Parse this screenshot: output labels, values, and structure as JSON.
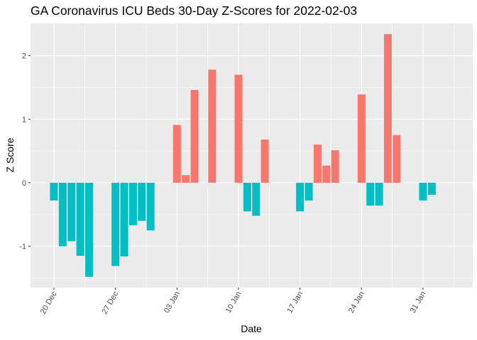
{
  "chart_data": {
    "type": "bar",
    "title": "GA Coronavirus ICU Beds 30-Day Z-Scores for 2022-02-03",
    "xlabel": "Date",
    "ylabel": "Z Score",
    "x_tick_labels": [
      "20 Dec",
      "27 Dec",
      "03 Jan",
      "10 Jan",
      "17 Jan",
      "24 Jan",
      "31 Jan"
    ],
    "y_tick_labels": [
      "-1",
      "0",
      "1",
      "2"
    ],
    "y_ticks": [
      -1,
      0,
      1,
      2
    ],
    "ylim": [
      -1.65,
      2.5
    ],
    "grid": true,
    "legend": "none",
    "colors": {
      "positive": "#F8766D",
      "negative": "#00BFC4",
      "panel": "#EBEBEB",
      "grid": "#FFFFFF"
    },
    "x_dates": [
      "2021-12-20",
      "2021-12-21",
      "2021-12-22",
      "2021-12-23",
      "2021-12-24",
      "2021-12-27",
      "2021-12-28",
      "2021-12-29",
      "2021-12-30",
      "2021-12-31",
      "2022-01-03",
      "2022-01-04",
      "2022-01-05",
      "2022-01-07",
      "2022-01-10",
      "2022-01-11",
      "2022-01-12",
      "2022-01-13",
      "2022-01-17",
      "2022-01-18",
      "2022-01-19",
      "2022-01-20",
      "2022-01-21",
      "2022-01-24",
      "2022-01-25",
      "2022-01-26",
      "2022-01-27",
      "2022-01-28",
      "2022-01-31",
      "2022-02-01",
      "2022-02-02",
      "2022-02-03"
    ],
    "values": [
      -0.28,
      -1.0,
      -0.92,
      -1.15,
      -1.48,
      -1.31,
      -1.16,
      -0.67,
      -0.6,
      -0.75,
      0.91,
      0.12,
      1.46,
      1.78,
      1.7,
      -0.45,
      -0.52,
      0.68,
      -0.45,
      -0.28,
      0.6,
      0.27,
      0.51,
      1.39,
      -0.36,
      -0.36,
      2.34,
      0.75,
      -0.28,
      -0.19,
      0,
      0
    ]
  }
}
